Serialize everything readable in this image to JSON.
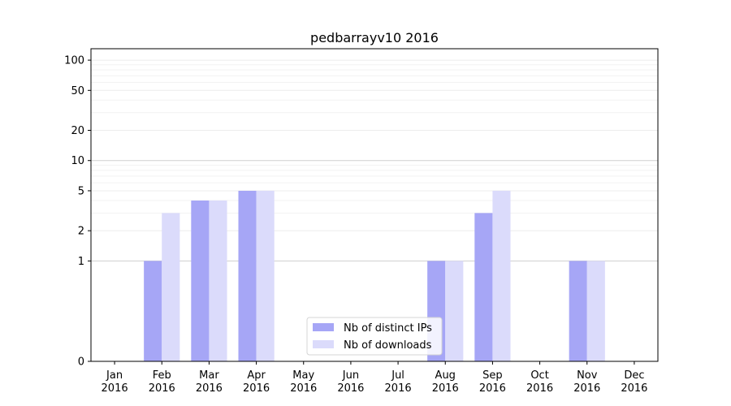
{
  "chart_data": {
    "type": "bar",
    "title": "pedbarrayv10 2016",
    "xlabel": "",
    "ylabel": "",
    "yscale": "symlog",
    "ylim": [
      0,
      130
    ],
    "yticks": [
      0,
      1,
      2,
      5,
      10,
      20,
      50,
      100
    ],
    "grid": "horizontal",
    "legend_position": "bottom-center",
    "categories": [
      [
        "Jan",
        "2016"
      ],
      [
        "Feb",
        "2016"
      ],
      [
        "Mar",
        "2016"
      ],
      [
        "Apr",
        "2016"
      ],
      [
        "May",
        "2016"
      ],
      [
        "Jun",
        "2016"
      ],
      [
        "Jul",
        "2016"
      ],
      [
        "Aug",
        "2016"
      ],
      [
        "Sep",
        "2016"
      ],
      [
        "Oct",
        "2016"
      ],
      [
        "Nov",
        "2016"
      ],
      [
        "Dec",
        "2016"
      ]
    ],
    "series": [
      {
        "name": "Nb of distinct IPs",
        "color": "#a6a6f6",
        "values": [
          0,
          1,
          4,
          5,
          0,
          0,
          0,
          1,
          3,
          0,
          1,
          0
        ]
      },
      {
        "name": "Nb of downloads",
        "color": "#dbdbfb",
        "values": [
          0,
          3,
          4,
          5,
          0,
          0,
          0,
          1,
          5,
          0,
          1,
          0
        ]
      }
    ]
  }
}
